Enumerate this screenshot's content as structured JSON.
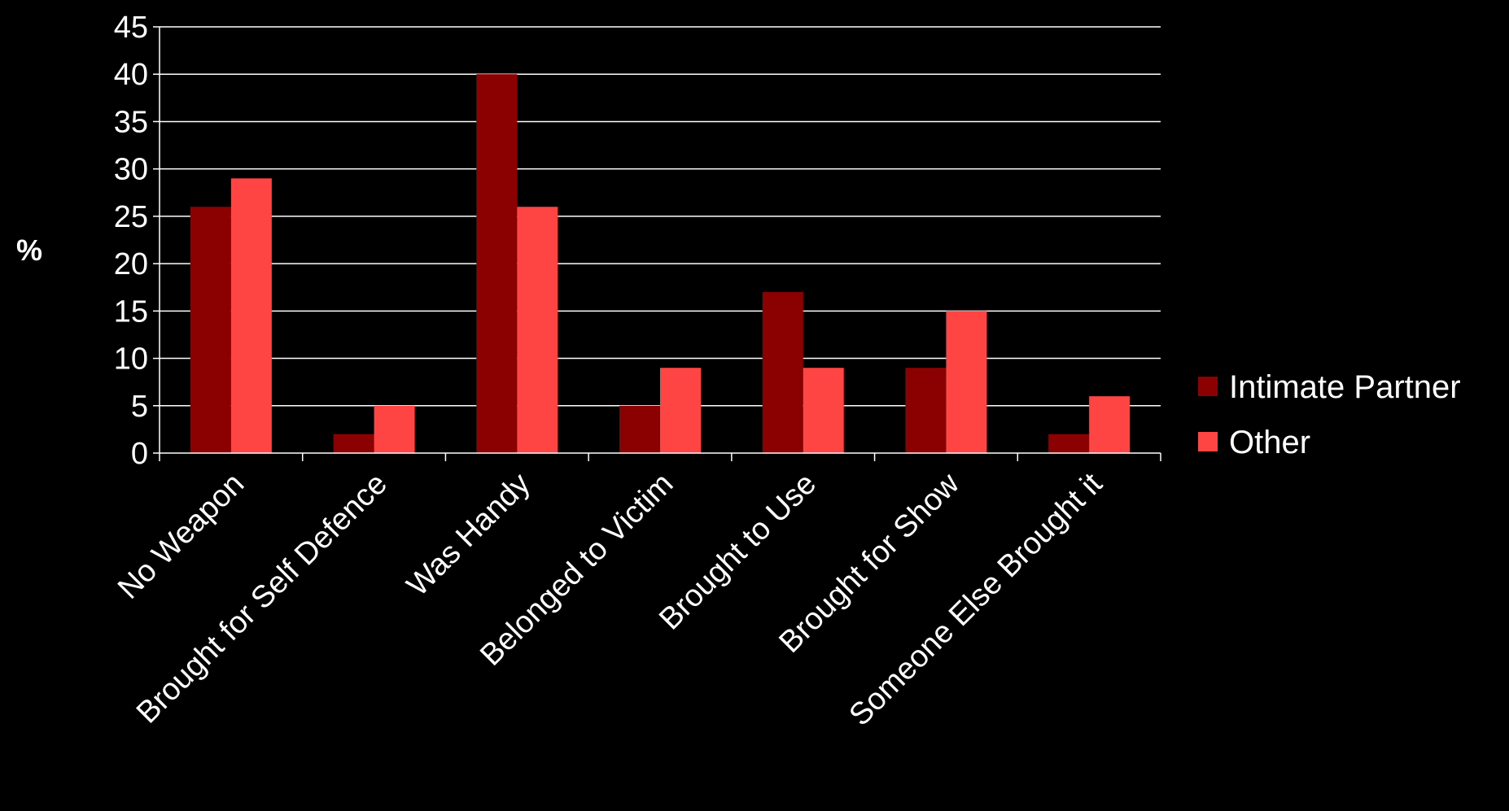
{
  "chart_data": {
    "type": "bar",
    "title": "",
    "ylabel": "%",
    "xlabel": "",
    "ylim": [
      0,
      45
    ],
    "yticks": [
      0,
      5,
      10,
      15,
      20,
      25,
      30,
      35,
      40,
      45
    ],
    "grid": true,
    "legend_position": "right",
    "categories": [
      "No Weapon",
      "Brought for Self Defence",
      "Was Handy",
      "Belonged to Victim",
      "Brought to Use",
      "Brought for Show",
      "Someone Else Brought it"
    ],
    "series": [
      {
        "name": "Intimate Partner",
        "color": "#8B0000",
        "values": [
          26,
          2,
          40,
          5,
          17,
          9,
          2
        ]
      },
      {
        "name": "Other",
        "color": "#FF4444",
        "values": [
          29,
          5,
          26,
          9,
          9,
          15,
          6
        ]
      }
    ]
  }
}
